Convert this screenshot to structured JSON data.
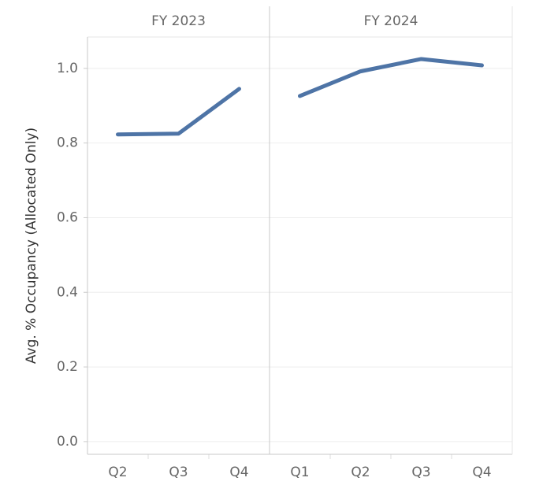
{
  "chart_data": {
    "type": "line",
    "y_label": "Avg. % Occupancy (Allocated Only)",
    "color": "#4e74a6",
    "ylim": [
      -0.034,
      1.084
    ],
    "yticks": [
      {
        "value": 0,
        "label": "0.0"
      },
      0.2,
      0.4,
      0.6,
      0.8,
      {
        "value": 1,
        "label": "1.0"
      }
    ],
    "grid": true,
    "panels": [
      {
        "title": "FY 2023",
        "categories": [
          "Q2",
          "Q3",
          "Q4"
        ],
        "values": [
          0.823,
          0.825,
          0.945
        ]
      },
      {
        "title": "FY 2024",
        "categories": [
          "Q1",
          "Q2",
          "Q3",
          "Q4"
        ],
        "values": [
          0.926,
          0.992,
          1.025,
          1.008
        ]
      }
    ]
  }
}
